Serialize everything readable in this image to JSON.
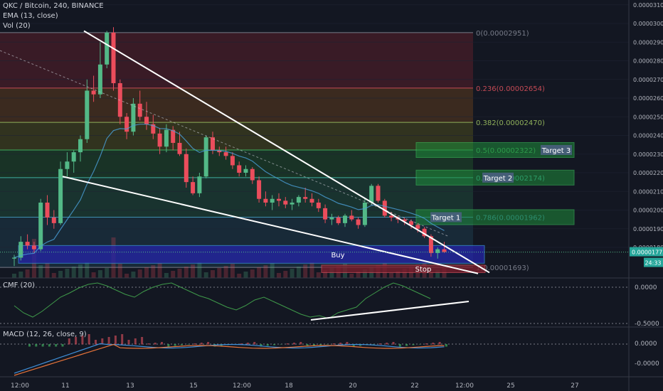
{
  "header": {
    "symbol_line": "QKC / Bitcoin, 240, BINANCE",
    "ema_line": "EMA (13, close)",
    "vol_line": "Vol (20)"
  },
  "indicators": {
    "cmf_label": "CMF (20)",
    "macd_label": "MACD (12, 26, close, 9)",
    "cmf_ticks": [
      "0.0000",
      "-0.5000"
    ],
    "macd_ticks": [
      "0.0000",
      "-0.0000"
    ]
  },
  "price_axis": {
    "ticks": [
      "0.00003100",
      "0.00003000",
      "0.00002900",
      "0.00002800",
      "0.00002700",
      "0.00002600",
      "0.00002500",
      "0.00002400",
      "0.00002300",
      "0.00002200",
      "0.00002100",
      "0.00002000",
      "0.00001900",
      "0.00001800"
    ],
    "tick_values": [
      3100,
      3000,
      2900,
      2800,
      2700,
      2600,
      2500,
      2400,
      2300,
      2200,
      2100,
      2000,
      1900,
      1800
    ],
    "current_price": "0.00001775",
    "countdown": "24:33"
  },
  "time_axis": {
    "labels": [
      "12:00",
      "11",
      "13",
      "15",
      "12:00",
      "18",
      "20",
      "22",
      "12:00",
      "25",
      "27"
    ]
  },
  "fib_levels": [
    {
      "label": "0(0.00002951)",
      "value": 2951
    },
    {
      "label": "0.236(0.00002654)",
      "value": 2654
    },
    {
      "label": "0.382(0.00002470)",
      "value": 2470
    },
    {
      "label": "0.5(0.00002322)",
      "value": 2322
    },
    {
      "label": "0.618(0.00002174)",
      "value": 2174
    },
    {
      "label": "0.786(0.00001962)",
      "value": 1962
    },
    {
      "label": "1(0.00001693)",
      "value": 1693
    }
  ],
  "zones": {
    "buy_label": "Buy",
    "stop_label": "Stop",
    "targets": [
      "Target 1",
      "Target 2",
      "Target 3"
    ]
  },
  "colors": {
    "background": "#131722",
    "bull": "#53b987",
    "bear": "#eb4d5c",
    "buy_zone": "#2424a8",
    "target_zone": "#1e8c3a",
    "stop_zone": "#7a1f2e"
  },
  "chart_data": {
    "type": "candlestick",
    "title": "QKC / Bitcoin, 240, BINANCE",
    "unit": "price x 1e-8 BTC",
    "ylim": [
      1650,
      3150
    ],
    "candles": [
      [
        1740,
        1760,
        1700,
        1745
      ],
      [
        1745,
        1860,
        1730,
        1830
      ],
      [
        1830,
        1870,
        1790,
        1810
      ],
      [
        1810,
        1830,
        1770,
        1790
      ],
      [
        1790,
        2060,
        1780,
        2040
      ],
      [
        2040,
        2080,
        1920,
        1960
      ],
      [
        1960,
        2000,
        1900,
        1930
      ],
      [
        1930,
        2260,
        1920,
        2220
      ],
      [
        2220,
        2310,
        2180,
        2260
      ],
      [
        2260,
        2320,
        2200,
        2310
      ],
      [
        2310,
        2400,
        2260,
        2380
      ],
      [
        2380,
        2700,
        2360,
        2640
      ],
      [
        2640,
        2720,
        2580,
        2620
      ],
      [
        2620,
        2900,
        2600,
        2780
      ],
      [
        2780,
        2960,
        2760,
        2951
      ],
      [
        2951,
        2980,
        2640,
        2680
      ],
      [
        2680,
        2700,
        2460,
        2500
      ],
      [
        2500,
        2520,
        2380,
        2420
      ],
      [
        2420,
        2600,
        2400,
        2570
      ],
      [
        2570,
        2640,
        2480,
        2500
      ],
      [
        2500,
        2580,
        2430,
        2460
      ],
      [
        2460,
        2510,
        2380,
        2410
      ],
      [
        2410,
        2440,
        2300,
        2340
      ],
      [
        2340,
        2460,
        2310,
        2430
      ],
      [
        2430,
        2450,
        2320,
        2360
      ],
      [
        2360,
        2420,
        2290,
        2300
      ],
      [
        2300,
        2330,
        2120,
        2150
      ],
      [
        2150,
        2180,
        2080,
        2090
      ],
      [
        2090,
        2200,
        2070,
        2180
      ],
      [
        2180,
        2400,
        2170,
        2390
      ],
      [
        2390,
        2420,
        2300,
        2320
      ],
      [
        2320,
        2340,
        2290,
        2310
      ],
      [
        2310,
        2340,
        2270,
        2290
      ],
      [
        2290,
        2310,
        2220,
        2240
      ],
      [
        2240,
        2260,
        2180,
        2200
      ],
      [
        2200,
        2240,
        2180,
        2220
      ],
      [
        2220,
        2230,
        2140,
        2160
      ],
      [
        2160,
        2180,
        2040,
        2060
      ],
      [
        2060,
        2100,
        2020,
        2040
      ],
      [
        2040,
        2080,
        2000,
        2060
      ],
      [
        2060,
        2090,
        2020,
        2050
      ],
      [
        2050,
        2070,
        2010,
        2030
      ],
      [
        2030,
        2060,
        2000,
        2040
      ],
      [
        2040,
        2080,
        2020,
        2070
      ],
      [
        2070,
        2120,
        2040,
        2060
      ],
      [
        2060,
        2090,
        2020,
        2040
      ],
      [
        2040,
        2060,
        1990,
        2010
      ],
      [
        2010,
        2030,
        1930,
        1950
      ],
      [
        1950,
        1980,
        1920,
        1960
      ],
      [
        1960,
        1970,
        1920,
        1930
      ],
      [
        1930,
        1980,
        1910,
        1970
      ],
      [
        1970,
        2000,
        1940,
        1950
      ],
      [
        1950,
        1960,
        1900,
        1920
      ],
      [
        1920,
        2060,
        1910,
        2040
      ],
      [
        2040,
        2140,
        2030,
        2130
      ],
      [
        2130,
        2140,
        2040,
        2050
      ],
      [
        2050,
        2060,
        1960,
        1970
      ],
      [
        1970,
        1990,
        1940,
        1960
      ],
      [
        1960,
        1970,
        1930,
        1950
      ],
      [
        1950,
        1960,
        1920,
        1940
      ],
      [
        1940,
        1950,
        1900,
        1920
      ],
      [
        1920,
        1930,
        1880,
        1900
      ],
      [
        1900,
        1910,
        1850,
        1860
      ],
      [
        1860,
        1870,
        1750,
        1770
      ],
      [
        1770,
        1800,
        1740,
        1790
      ],
      [
        1790,
        1830,
        1770,
        1775
      ]
    ],
    "annotations": [
      "Buy",
      "Stop",
      "Target 1",
      "Target 2",
      "Target 3"
    ]
  }
}
